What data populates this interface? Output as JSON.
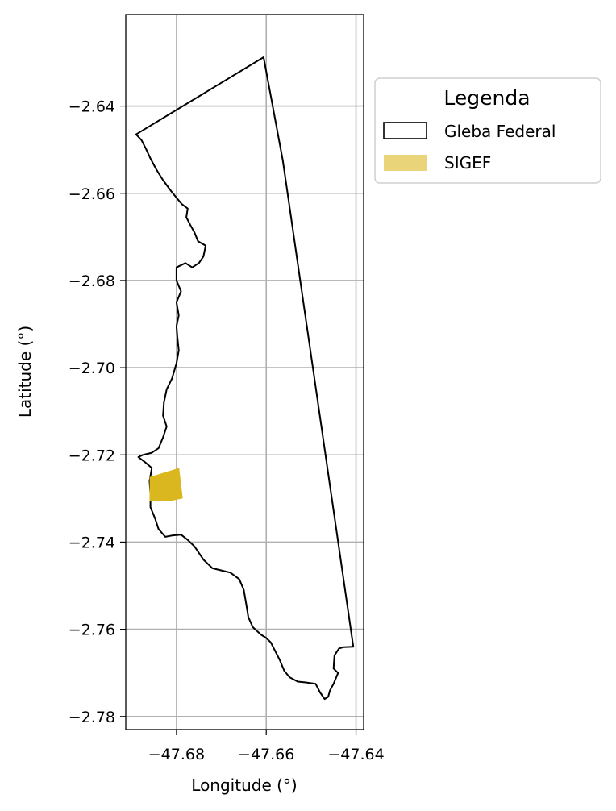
{
  "chart_data": {
    "type": "map",
    "xlabel": "Longitude (°)",
    "ylabel": "Latitude (°)",
    "xlim": [
      -47.6913,
      -47.6383
    ],
    "ylim": [
      -2.783,
      -2.619
    ],
    "x_ticks": [
      -47.68,
      -47.66,
      -47.64
    ],
    "x_tick_labels": [
      "−47.68",
      "−47.66",
      "−47.64"
    ],
    "y_ticks": [
      -2.64,
      -2.66,
      -2.68,
      -2.7,
      -2.72,
      -2.74,
      -2.76,
      -2.78
    ],
    "y_tick_labels": [
      "−2.64",
      "−2.66",
      "−2.68",
      "−2.70",
      "−2.72",
      "−2.74",
      "−2.76",
      "−2.78"
    ],
    "grid": true,
    "legend": {
      "title": "Legenda",
      "placement": "outside-upper-right",
      "entries": [
        {
          "label": "Gleba Federal",
          "style": "outline",
          "color": "#000000"
        },
        {
          "label": "SIGEF",
          "style": "fill",
          "color": "#dab71f"
        }
      ]
    },
    "layers": [
      {
        "name": "Gleba Federal",
        "type": "polygon-outline",
        "stroke": "#000000",
        "coordinates": [
          [
            -47.6606,
            -2.6288
          ],
          [
            -47.6563,
            -2.6525
          ],
          [
            -47.6406,
            -2.764
          ],
          [
            -47.6428,
            -2.7641
          ],
          [
            -47.6438,
            -2.7644
          ],
          [
            -47.6448,
            -2.766
          ],
          [
            -47.645,
            -2.769
          ],
          [
            -47.644,
            -2.77
          ],
          [
            -47.645,
            -2.7725
          ],
          [
            -47.6458,
            -2.774
          ],
          [
            -47.6462,
            -2.7755
          ],
          [
            -47.647,
            -2.776
          ],
          [
            -47.648,
            -2.7745
          ],
          [
            -47.649,
            -2.7725
          ],
          [
            -47.651,
            -2.7722
          ],
          [
            -47.653,
            -2.772
          ],
          [
            -47.6548,
            -2.771
          ],
          [
            -47.656,
            -2.7695
          ],
          [
            -47.657,
            -2.767
          ],
          [
            -47.658,
            -2.765
          ],
          [
            -47.659,
            -2.763
          ],
          [
            -47.66,
            -2.762
          ],
          [
            -47.6612,
            -2.7612
          ],
          [
            -47.663,
            -2.7595
          ],
          [
            -47.664,
            -2.7572
          ],
          [
            -47.6645,
            -2.754
          ],
          [
            -47.665,
            -2.751
          ],
          [
            -47.666,
            -2.7485
          ],
          [
            -47.668,
            -2.747
          ],
          [
            -47.67,
            -2.7465
          ],
          [
            -47.672,
            -2.746
          ],
          [
            -47.674,
            -2.744
          ],
          [
            -47.676,
            -2.741
          ],
          [
            -47.6775,
            -2.7395
          ],
          [
            -47.679,
            -2.7383
          ],
          [
            -47.681,
            -2.7385
          ],
          [
            -47.6825,
            -2.7388
          ],
          [
            -47.684,
            -2.737
          ],
          [
            -47.6848,
            -2.7345
          ],
          [
            -47.6858,
            -2.732
          ],
          [
            -47.6858,
            -2.729
          ],
          [
            -47.686,
            -2.726
          ],
          [
            -47.6855,
            -2.723
          ],
          [
            -47.6872,
            -2.7215
          ],
          [
            -47.6885,
            -2.7205
          ],
          [
            -47.6875,
            -2.72
          ],
          [
            -47.6855,
            -2.7195
          ],
          [
            -47.684,
            -2.7185
          ],
          [
            -47.683,
            -2.716
          ],
          [
            -47.6822,
            -2.7135
          ],
          [
            -47.683,
            -2.711
          ],
          [
            -47.6828,
            -2.708
          ],
          [
            -47.6822,
            -2.705
          ],
          [
            -47.681,
            -2.7025
          ],
          [
            -47.68,
            -2.699
          ],
          [
            -47.6795,
            -2.696
          ],
          [
            -47.6798,
            -2.693
          ],
          [
            -47.68,
            -2.6905
          ],
          [
            -47.6795,
            -2.688
          ],
          [
            -47.68,
            -2.685
          ],
          [
            -47.679,
            -2.6825
          ],
          [
            -47.68,
            -2.68
          ],
          [
            -47.68,
            -2.677
          ],
          [
            -47.678,
            -2.676
          ],
          [
            -47.6765,
            -2.677
          ],
          [
            -47.675,
            -2.676
          ],
          [
            -47.674,
            -2.6745
          ],
          [
            -47.6735,
            -2.672
          ],
          [
            -47.6752,
            -2.671
          ],
          [
            -47.676,
            -2.669
          ],
          [
            -47.6768,
            -2.6675
          ],
          [
            -47.6778,
            -2.6655
          ],
          [
            -47.6775,
            -2.6635
          ],
          [
            -47.6788,
            -2.6625
          ],
          [
            -47.68,
            -2.661
          ],
          [
            -47.6812,
            -2.6595
          ],
          [
            -47.683,
            -2.657
          ],
          [
            -47.6845,
            -2.6545
          ],
          [
            -47.6858,
            -2.652
          ],
          [
            -47.6868,
            -2.6498
          ],
          [
            -47.6878,
            -2.6478
          ],
          [
            -47.689,
            -2.6465
          ],
          [
            -47.6606,
            -2.6288
          ]
        ]
      },
      {
        "name": "SIGEF",
        "type": "polygon-fill",
        "fill": "#dab71f",
        "coordinates": [
          [
            -47.686,
            -2.7251
          ],
          [
            -47.6794,
            -2.723
          ],
          [
            -47.6786,
            -2.73
          ],
          [
            -47.681,
            -2.7305
          ],
          [
            -47.686,
            -2.7307
          ]
        ]
      }
    ]
  }
}
